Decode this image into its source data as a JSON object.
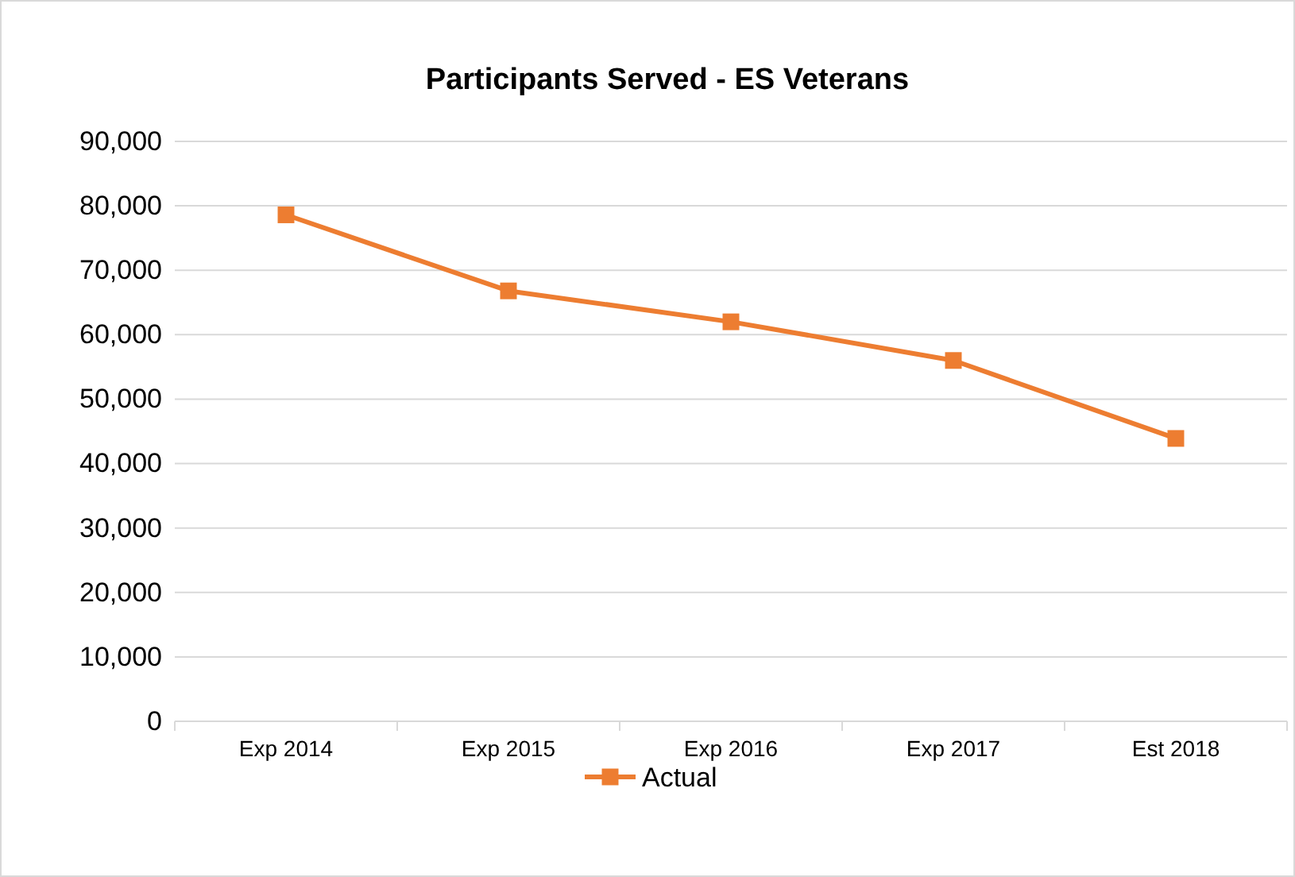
{
  "chart_data": {
    "type": "line",
    "title": "Participants Served - ES Veterans",
    "categories": [
      "Exp 2014",
      "Exp 2015",
      "Exp 2016",
      "Exp 2017",
      "Est 2018"
    ],
    "series": [
      {
        "name": "Actual",
        "color": "#ed7d31",
        "values": [
          78600,
          66800,
          62000,
          56000,
          43900
        ]
      }
    ],
    "ylim": [
      0,
      90000
    ],
    "yticks": [
      {
        "value": 0,
        "label": "0"
      },
      {
        "value": 10000,
        "label": "10,000"
      },
      {
        "value": 20000,
        "label": "20,000"
      },
      {
        "value": 30000,
        "label": "30,000"
      },
      {
        "value": 40000,
        "label": "40,000"
      },
      {
        "value": 50000,
        "label": "50,000"
      },
      {
        "value": 60000,
        "label": "60,000"
      },
      {
        "value": 70000,
        "label": "70,000"
      },
      {
        "value": 80000,
        "label": "80,000"
      },
      {
        "value": 90000,
        "label": "90,000"
      }
    ],
    "grid": "y",
    "legend": "bottom",
    "marker": "square",
    "line_style": "solid"
  }
}
